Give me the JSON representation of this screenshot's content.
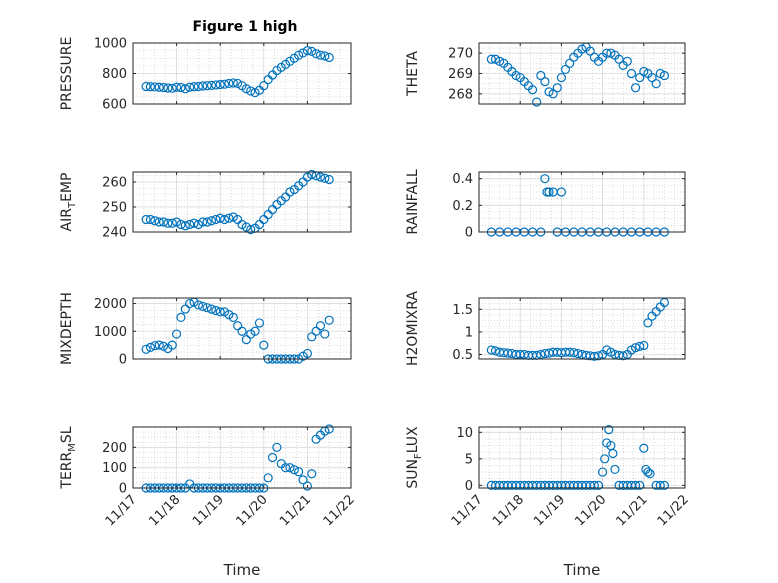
{
  "figure": {
    "title": "Figure 1 high"
  },
  "colors": {
    "marker": "#0072BD",
    "axes": "#262626",
    "grid": "#d9d9d9",
    "background": "#ffffff"
  },
  "chart_data": [
    {
      "type": "scatter",
      "ylabel": "PRESSURE",
      "xlabel": "",
      "title": "Figure 1 high",
      "xlim": [
        17,
        22
      ],
      "ylim": [
        600,
        1000
      ],
      "yticks": [
        600,
        800,
        1000
      ],
      "ytick_labels": [
        "600",
        "800",
        "1000"
      ],
      "xtick_labels": [],
      "grid": true,
      "y_sub": "",
      "x": [
        17.3,
        17.4,
        17.5,
        17.6,
        17.7,
        17.8,
        17.9,
        18.0,
        18.1,
        18.2,
        18.3,
        18.4,
        18.5,
        18.6,
        18.7,
        18.8,
        18.9,
        19.0,
        19.1,
        19.2,
        19.3,
        19.4,
        19.5,
        19.6,
        19.7,
        19.8,
        19.9,
        20.0,
        20.1,
        20.2,
        20.3,
        20.4,
        20.5,
        20.6,
        20.7,
        20.8,
        20.9,
        21.0,
        21.1,
        21.2,
        21.3,
        21.4,
        21.5
      ],
      "y": [
        715,
        713,
        712,
        710,
        708,
        705,
        703,
        710,
        708,
        700,
        710,
        713,
        715,
        718,
        720,
        722,
        725,
        728,
        730,
        735,
        738,
        735,
        720,
        700,
        685,
        675,
        690,
        720,
        760,
        790,
        820,
        840,
        860,
        880,
        900,
        920,
        935,
        950,
        945,
        930,
        920,
        915,
        905
      ]
    },
    {
      "type": "scatter",
      "ylabel": "THETA",
      "xlabel": "",
      "title": "",
      "xlim": [
        17,
        22
      ],
      "ylim": [
        267.5,
        270.5
      ],
      "yticks": [
        268,
        269,
        270
      ],
      "ytick_labels": [
        "268",
        "269",
        "270"
      ],
      "xtick_labels": [],
      "grid": true,
      "y_sub": "",
      "x": [
        17.3,
        17.4,
        17.5,
        17.6,
        17.7,
        17.8,
        17.9,
        18.0,
        18.1,
        18.2,
        18.3,
        18.4,
        18.5,
        18.6,
        18.7,
        18.8,
        18.9,
        19.0,
        19.1,
        19.2,
        19.3,
        19.4,
        19.5,
        19.6,
        19.7,
        19.8,
        19.9,
        20.0,
        20.1,
        20.2,
        20.3,
        20.4,
        20.5,
        20.6,
        20.7,
        20.8,
        20.9,
        21.0,
        21.1,
        21.2,
        21.3,
        21.4,
        21.5
      ],
      "y": [
        269.7,
        269.7,
        269.6,
        269.5,
        269.3,
        269.1,
        268.9,
        268.8,
        268.6,
        268.4,
        268.2,
        267.6,
        268.9,
        268.6,
        268.1,
        268.0,
        268.3,
        268.8,
        269.2,
        269.5,
        269.8,
        270.0,
        270.2,
        270.3,
        270.1,
        269.8,
        269.6,
        269.8,
        270.0,
        270.0,
        269.9,
        269.7,
        269.4,
        269.6,
        269.0,
        268.3,
        268.8,
        269.1,
        269.0,
        268.8,
        268.5,
        269.0,
        268.9
      ]
    },
    {
      "type": "scatter",
      "ylabel": "AIR",
      "xlabel": "",
      "title": "",
      "xlim": [
        17,
        22
      ],
      "ylim": [
        240,
        264
      ],
      "yticks": [
        240,
        250,
        260
      ],
      "ytick_labels": [
        "240",
        "250",
        "260"
      ],
      "xtick_labels": [],
      "grid": true,
      "y_sub": "T",
      "y_label_tail": "EMP",
      "x": [
        17.3,
        17.4,
        17.5,
        17.6,
        17.7,
        17.8,
        17.9,
        18.0,
        18.1,
        18.2,
        18.3,
        18.4,
        18.5,
        18.6,
        18.7,
        18.8,
        18.9,
        19.0,
        19.1,
        19.2,
        19.3,
        19.4,
        19.5,
        19.6,
        19.7,
        19.8,
        19.9,
        20.0,
        20.1,
        20.2,
        20.3,
        20.4,
        20.5,
        20.6,
        20.7,
        20.8,
        20.9,
        21.0,
        21.1,
        21.2,
        21.3,
        21.4,
        21.5
      ],
      "y": [
        245,
        245,
        244.5,
        244,
        244,
        243.5,
        243.5,
        244,
        243,
        242.5,
        243,
        243.5,
        243,
        244,
        244,
        244.5,
        245,
        245.5,
        245,
        245.5,
        246,
        245,
        243,
        242,
        241,
        241.5,
        243,
        245,
        247,
        249,
        251,
        252.5,
        254,
        256,
        257,
        258.5,
        260,
        262,
        263,
        262.5,
        262,
        261.5,
        261
      ]
    },
    {
      "type": "scatter",
      "ylabel": "RAINFALL",
      "xlabel": "",
      "title": "",
      "xlim": [
        17,
        22
      ],
      "ylim": [
        0,
        0.45
      ],
      "yticks": [
        0,
        0.2,
        0.4
      ],
      "ytick_labels": [
        "0",
        "0.2",
        "0.4"
      ],
      "xtick_labels": [],
      "grid": true,
      "y_sub": "",
      "x": [
        17.3,
        17.5,
        17.7,
        17.9,
        18.1,
        18.3,
        18.5,
        18.6,
        18.65,
        18.7,
        18.8,
        18.9,
        19.0,
        19.1,
        19.3,
        19.5,
        19.7,
        19.9,
        20.1,
        20.3,
        20.5,
        20.7,
        20.9,
        21.1,
        21.3,
        21.5
      ],
      "y": [
        0,
        0,
        0,
        0,
        0,
        0,
        0,
        0.4,
        0.3,
        0.3,
        0.3,
        0,
        0.3,
        0,
        0,
        0,
        0,
        0,
        0,
        0,
        0,
        0,
        0,
        0,
        0,
        0
      ]
    },
    {
      "type": "scatter",
      "ylabel": "MIXDEPTH",
      "xlabel": "",
      "title": "",
      "xlim": [
        17,
        22
      ],
      "ylim": [
        0,
        2200
      ],
      "yticks": [
        0,
        1000,
        2000
      ],
      "ytick_labels": [
        "0",
        "1000",
        "2000"
      ],
      "xtick_labels": [],
      "grid": true,
      "y_sub": "",
      "x": [
        17.3,
        17.4,
        17.5,
        17.6,
        17.7,
        17.8,
        17.9,
        18.0,
        18.1,
        18.2,
        18.3,
        18.4,
        18.5,
        18.6,
        18.7,
        18.8,
        18.9,
        19.0,
        19.1,
        19.2,
        19.3,
        19.4,
        19.5,
        19.6,
        19.7,
        19.8,
        19.9,
        20.0,
        20.1,
        20.2,
        20.3,
        20.4,
        20.5,
        20.6,
        20.7,
        20.8,
        20.9,
        21.0,
        21.1,
        21.2,
        21.3,
        21.4,
        21.5
      ],
      "y": [
        350,
        420,
        480,
        500,
        460,
        380,
        500,
        900,
        1500,
        1800,
        2000,
        2050,
        1950,
        1900,
        1850,
        1800,
        1750,
        1700,
        1700,
        1600,
        1500,
        1200,
        1000,
        700,
        900,
        1000,
        1300,
        500,
        0,
        0,
        0,
        0,
        0,
        0,
        0,
        0,
        100,
        200,
        800,
        1000,
        1200,
        900,
        1400
      ]
    },
    {
      "type": "scatter",
      "ylabel": "H2OMIXRA",
      "xlabel": "",
      "title": "",
      "xlim": [
        17,
        22
      ],
      "ylim": [
        0.4,
        1.75
      ],
      "yticks": [
        0.5,
        1,
        1.5
      ],
      "ytick_labels": [
        "0.5",
        "1",
        "1.5"
      ],
      "xtick_labels": [],
      "grid": true,
      "y_sub": "",
      "x": [
        17.3,
        17.4,
        17.5,
        17.6,
        17.7,
        17.8,
        17.9,
        18.0,
        18.1,
        18.2,
        18.3,
        18.4,
        18.5,
        18.6,
        18.7,
        18.8,
        18.9,
        19.0,
        19.1,
        19.2,
        19.3,
        19.4,
        19.5,
        19.6,
        19.7,
        19.8,
        19.9,
        20.0,
        20.1,
        20.2,
        20.3,
        20.4,
        20.5,
        20.6,
        20.7,
        20.8,
        20.9,
        21.0,
        21.1,
        21.2,
        21.3,
        21.4,
        21.5
      ],
      "y": [
        0.6,
        0.58,
        0.55,
        0.54,
        0.53,
        0.52,
        0.5,
        0.5,
        0.5,
        0.48,
        0.48,
        0.48,
        0.5,
        0.52,
        0.53,
        0.55,
        0.55,
        0.54,
        0.55,
        0.55,
        0.54,
        0.52,
        0.5,
        0.48,
        0.47,
        0.46,
        0.47,
        0.5,
        0.6,
        0.55,
        0.5,
        0.48,
        0.47,
        0.5,
        0.6,
        0.65,
        0.68,
        0.7,
        1.2,
        1.35,
        1.45,
        1.55,
        1.65
      ]
    },
    {
      "type": "scatter",
      "ylabel": "TERR",
      "xlabel": "Time",
      "title": "",
      "xlim": [
        17,
        22
      ],
      "ylim": [
        0,
        300
      ],
      "yticks": [
        0,
        100,
        200
      ],
      "ytick_labels": [
        "0",
        "100",
        "200"
      ],
      "xtick_labels": [
        "11/17",
        "11/18",
        "11/19",
        "11/20",
        "11/21",
        "11/22"
      ],
      "grid": true,
      "y_sub": "M",
      "y_label_tail": "SL",
      "x": [
        17.3,
        17.4,
        17.5,
        17.6,
        17.7,
        17.8,
        17.9,
        18.0,
        18.1,
        18.2,
        18.3,
        18.4,
        18.5,
        18.6,
        18.7,
        18.8,
        18.9,
        19.0,
        19.1,
        19.2,
        19.3,
        19.4,
        19.5,
        19.6,
        19.7,
        19.8,
        19.9,
        20.0,
        20.1,
        20.2,
        20.3,
        20.4,
        20.5,
        20.6,
        20.7,
        20.8,
        20.9,
        21.0,
        21.1,
        21.2,
        21.3,
        21.4,
        21.5
      ],
      "y": [
        0,
        0,
        0,
        0,
        0,
        0,
        0,
        0,
        0,
        0,
        20,
        0,
        0,
        0,
        0,
        0,
        0,
        0,
        0,
        0,
        0,
        0,
        0,
        0,
        0,
        0,
        0,
        0,
        50,
        150,
        200,
        120,
        100,
        100,
        90,
        80,
        40,
        10,
        70,
        240,
        260,
        280,
        290
      ]
    },
    {
      "type": "scatter",
      "ylabel": "SUN",
      "xlabel": "Time",
      "title": "",
      "xlim": [
        17,
        22
      ],
      "ylim": [
        -0.5,
        11
      ],
      "yticks": [
        0,
        5,
        10
      ],
      "ytick_labels": [
        "0",
        "5",
        "10"
      ],
      "xtick_labels": [
        "11/17",
        "11/18",
        "11/19",
        "11/20",
        "11/21",
        "11/22"
      ],
      "grid": true,
      "y_sub": "F",
      "y_label_tail": "LUX",
      "x": [
        17.3,
        17.4,
        17.5,
        17.6,
        17.7,
        17.8,
        17.9,
        18.0,
        18.1,
        18.2,
        18.3,
        18.4,
        18.5,
        18.6,
        18.7,
        18.8,
        18.9,
        19.0,
        19.1,
        19.2,
        19.3,
        19.4,
        19.5,
        19.6,
        19.7,
        19.8,
        19.9,
        20.0,
        20.05,
        20.1,
        20.15,
        20.2,
        20.25,
        20.3,
        20.4,
        20.5,
        20.6,
        20.7,
        20.8,
        20.9,
        21.0,
        21.05,
        21.1,
        21.15,
        21.3,
        21.4,
        21.5
      ],
      "y": [
        0,
        0,
        0,
        0,
        0,
        0,
        0,
        0,
        0,
        0,
        0,
        0,
        0,
        0,
        0,
        0,
        0,
        0,
        0,
        0,
        0,
        0,
        0,
        0,
        0,
        0,
        0,
        2.5,
        5,
        8,
        10.5,
        7.5,
        6,
        3,
        0,
        0,
        0,
        0,
        0,
        0,
        7,
        3,
        2.5,
        2.2,
        0,
        0,
        0
      ]
    }
  ]
}
